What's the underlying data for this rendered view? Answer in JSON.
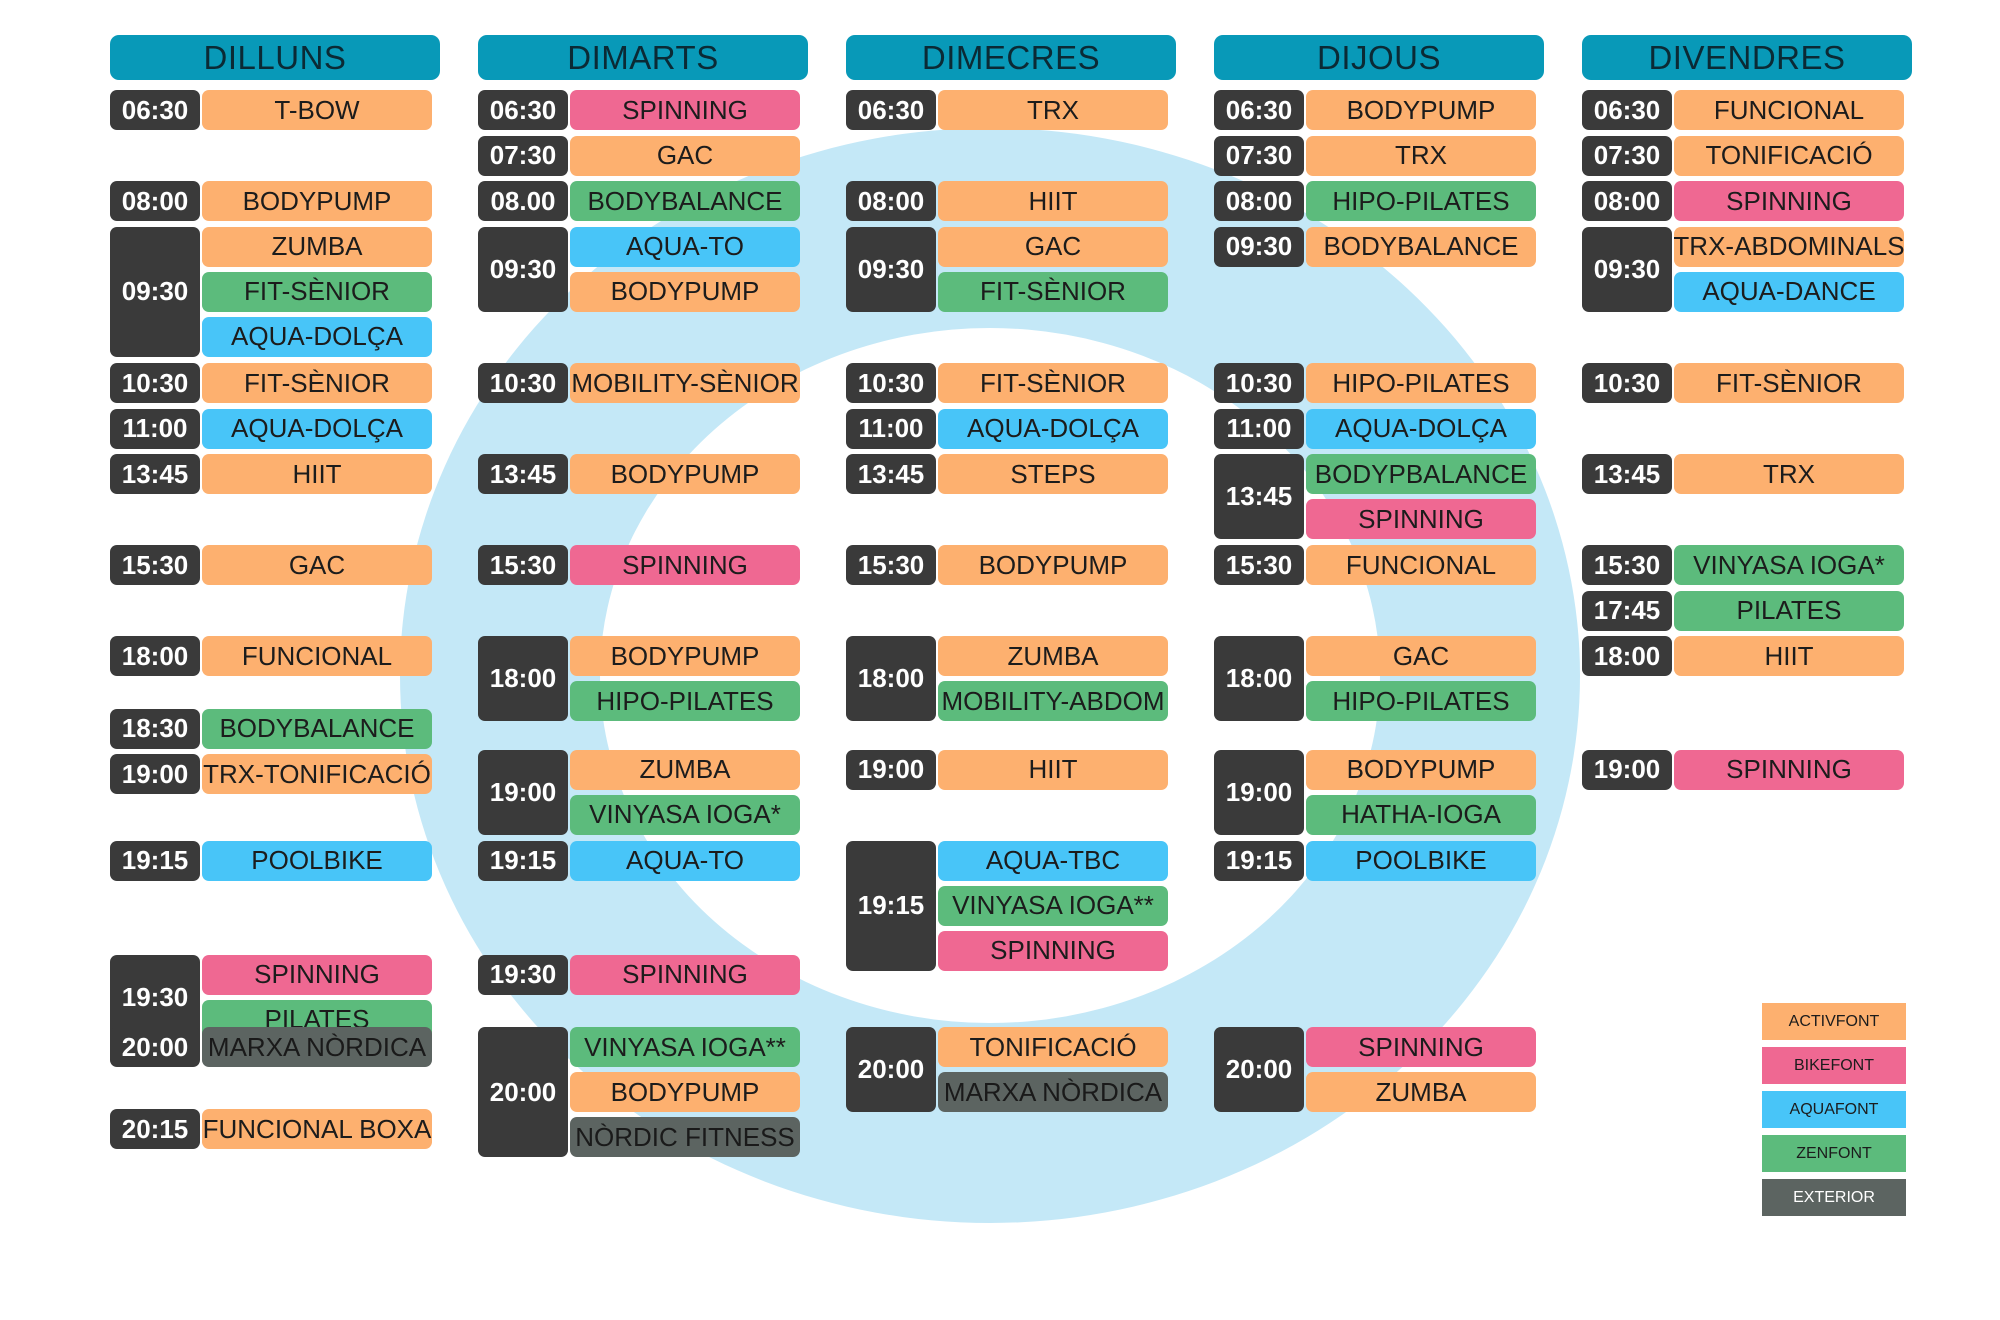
{
  "colors": {
    "ACTIVFONT": "#fdb06f",
    "BIKEFONT": "#ef6892",
    "AQUAFONT": "#48c5f8",
    "ZENFONT": "#5cbb7c",
    "EXTERIOR": "#5c6461",
    "time_bg": "#3a3a3a",
    "header_bg": "#0899b8",
    "ring": "#c4e8f7"
  },
  "days": [
    {
      "name": "DILLUNS",
      "slots": [
        {
          "time": "06:30",
          "classes": [
            {
              "name": "T-BOW",
              "cat": "ACTIVFONT"
            }
          ]
        },
        {
          "time": "08:00",
          "classes": [
            {
              "name": "BODYPUMP",
              "cat": "ACTIVFONT"
            }
          ]
        },
        {
          "time": "09:30",
          "classes": [
            {
              "name": "ZUMBA",
              "cat": "ACTIVFONT"
            },
            {
              "name": "FIT-SÈNIOR",
              "cat": "ZENFONT"
            },
            {
              "name": "AQUA-DOLÇA",
              "cat": "AQUAFONT"
            }
          ]
        },
        {
          "time": "10:30",
          "classes": [
            {
              "name": "FIT-SÈNIOR",
              "cat": "ACTIVFONT"
            }
          ]
        },
        {
          "time": "11:00",
          "classes": [
            {
              "name": "AQUA-DOLÇA",
              "cat": "AQUAFONT"
            }
          ]
        },
        {
          "time": "13:45",
          "classes": [
            {
              "name": "HIIT",
              "cat": "ACTIVFONT"
            }
          ]
        },
        {
          "time": "15:30",
          "classes": [
            {
              "name": "GAC",
              "cat": "ACTIVFONT"
            }
          ]
        },
        {
          "time": "18:00",
          "classes": [
            {
              "name": "FUNCIONAL",
              "cat": "ACTIVFONT"
            }
          ]
        },
        {
          "time": "18:30",
          "classes": [
            {
              "name": "BODYBALANCE",
              "cat": "ZENFONT"
            }
          ]
        },
        {
          "time": "19:00",
          "classes": [
            {
              "name": "TRX-TONIFICACIÓ",
              "cat": "ACTIVFONT"
            }
          ]
        },
        {
          "time": "19:15",
          "classes": [
            {
              "name": "POOLBIKE",
              "cat": "AQUAFONT"
            }
          ]
        },
        {
          "time": "19:30",
          "classes": [
            {
              "name": "SPINNING",
              "cat": "BIKEFONT"
            },
            {
              "name": "PILATES",
              "cat": "ZENFONT"
            }
          ]
        },
        {
          "time": "20:00",
          "classes": [
            {
              "name": "MARXA NÒRDICA",
              "cat": "EXTERIOR"
            }
          ]
        },
        {
          "time": "20:15",
          "classes": [
            {
              "name": "FUNCIONAL BOXA",
              "cat": "ACTIVFONT"
            }
          ]
        }
      ]
    },
    {
      "name": "DIMARTS",
      "slots": [
        {
          "time": "06:30",
          "classes": [
            {
              "name": "SPINNING",
              "cat": "BIKEFONT"
            }
          ]
        },
        {
          "time": "07:30",
          "classes": [
            {
              "name": "GAC",
              "cat": "ACTIVFONT"
            }
          ]
        },
        {
          "time": "08.00",
          "classes": [
            {
              "name": "BODYBALANCE",
              "cat": "ZENFONT"
            }
          ]
        },
        {
          "time": "09:30",
          "classes": [
            {
              "name": "AQUA-TO",
              "cat": "AQUAFONT"
            },
            {
              "name": "BODYPUMP",
              "cat": "ACTIVFONT"
            }
          ]
        },
        {
          "time": "10:30",
          "classes": [
            {
              "name": "MOBILITY-SÈNIOR",
              "cat": "ACTIVFONT"
            }
          ]
        },
        {
          "time": "13:45",
          "classes": [
            {
              "name": "BODYPUMP",
              "cat": "ACTIVFONT"
            }
          ]
        },
        {
          "time": "15:30",
          "classes": [
            {
              "name": "SPINNING",
              "cat": "BIKEFONT"
            }
          ]
        },
        {
          "time": "18:00",
          "classes": [
            {
              "name": "BODYPUMP",
              "cat": "ACTIVFONT"
            },
            {
              "name": "HIPO-PILATES",
              "cat": "ZENFONT"
            }
          ]
        },
        {
          "time": "19:00",
          "classes": [
            {
              "name": "ZUMBA",
              "cat": "ACTIVFONT"
            },
            {
              "name": "VINYASA IOGA*",
              "cat": "ZENFONT"
            }
          ]
        },
        {
          "time": "19:15",
          "classes": [
            {
              "name": "AQUA-TO",
              "cat": "AQUAFONT"
            }
          ]
        },
        {
          "time": "19:30",
          "classes": [
            {
              "name": "SPINNING",
              "cat": "BIKEFONT"
            }
          ]
        },
        {
          "time": "20:00",
          "classes": [
            {
              "name": "VINYASA IOGA**",
              "cat": "ZENFONT"
            },
            {
              "name": "BODYPUMP",
              "cat": "ACTIVFONT"
            },
            {
              "name": "NÒRDIC FITNESS",
              "cat": "EXTERIOR"
            }
          ]
        }
      ]
    },
    {
      "name": "DIMECRES",
      "slots": [
        {
          "time": "06:30",
          "classes": [
            {
              "name": "TRX",
              "cat": "ACTIVFONT"
            }
          ]
        },
        {
          "time": "08:00",
          "classes": [
            {
              "name": "HIIT",
              "cat": "ACTIVFONT"
            }
          ]
        },
        {
          "time": "09:30",
          "classes": [
            {
              "name": "GAC",
              "cat": "ACTIVFONT"
            },
            {
              "name": "FIT-SÈNIOR",
              "cat": "ZENFONT"
            }
          ]
        },
        {
          "time": "10:30",
          "classes": [
            {
              "name": "FIT-SÈNIOR",
              "cat": "ACTIVFONT"
            }
          ]
        },
        {
          "time": "11:00",
          "classes": [
            {
              "name": "AQUA-DOLÇA",
              "cat": "AQUAFONT"
            }
          ]
        },
        {
          "time": "13:45",
          "classes": [
            {
              "name": "STEPS",
              "cat": "ACTIVFONT"
            }
          ]
        },
        {
          "time": "15:30",
          "classes": [
            {
              "name": "BODYPUMP",
              "cat": "ACTIVFONT"
            }
          ]
        },
        {
          "time": "18:00",
          "classes": [
            {
              "name": "ZUMBA",
              "cat": "ACTIVFONT"
            },
            {
              "name": "MOBILITY-ABDOM",
              "cat": "ZENFONT"
            }
          ]
        },
        {
          "time": "19:00",
          "classes": [
            {
              "name": "HIIT",
              "cat": "ACTIVFONT"
            }
          ]
        },
        {
          "time": "19:15",
          "classes": [
            {
              "name": "AQUA-TBC",
              "cat": "AQUAFONT"
            },
            {
              "name": "VINYASA IOGA**",
              "cat": "ZENFONT"
            },
            {
              "name": "SPINNING",
              "cat": "BIKEFONT"
            }
          ]
        },
        {
          "time": "20:00",
          "classes": [
            {
              "name": "TONIFICACIÓ",
              "cat": "ACTIVFONT"
            },
            {
              "name": "MARXA NÒRDICA",
              "cat": "EXTERIOR"
            }
          ]
        }
      ]
    },
    {
      "name": "DIJOUS",
      "slots": [
        {
          "time": "06:30",
          "classes": [
            {
              "name": "BODYPUMP",
              "cat": "ACTIVFONT"
            }
          ]
        },
        {
          "time": "07:30",
          "classes": [
            {
              "name": "TRX",
              "cat": "ACTIVFONT"
            }
          ]
        },
        {
          "time": "08:00",
          "classes": [
            {
              "name": "HIPO-PILATES",
              "cat": "ZENFONT"
            }
          ]
        },
        {
          "time": "09:30",
          "classes": [
            {
              "name": "BODYBALANCE",
              "cat": "ACTIVFONT"
            }
          ]
        },
        {
          "time": "10:30",
          "classes": [
            {
              "name": "HIPO-PILATES",
              "cat": "ACTIVFONT"
            }
          ]
        },
        {
          "time": "11:00",
          "classes": [
            {
              "name": "AQUA-DOLÇA",
              "cat": "AQUAFONT"
            }
          ]
        },
        {
          "time": "13:45",
          "classes": [
            {
              "name": "BODYPBALANCE",
              "cat": "ZENFONT"
            },
            {
              "name": "SPINNING",
              "cat": "BIKEFONT"
            }
          ]
        },
        {
          "time": "15:30",
          "classes": [
            {
              "name": "FUNCIONAL",
              "cat": "ACTIVFONT"
            }
          ]
        },
        {
          "time": "18:00",
          "classes": [
            {
              "name": "GAC",
              "cat": "ACTIVFONT"
            },
            {
              "name": "HIPO-PILATES",
              "cat": "ZENFONT"
            }
          ]
        },
        {
          "time": "19:00",
          "classes": [
            {
              "name": "BODYPUMP",
              "cat": "ACTIVFONT"
            },
            {
              "name": "HATHA-IOGA",
              "cat": "ZENFONT"
            }
          ]
        },
        {
          "time": "19:15",
          "classes": [
            {
              "name": "POOLBIKE",
              "cat": "AQUAFONT"
            }
          ]
        },
        {
          "time": "20:00",
          "classes": [
            {
              "name": "SPINNING",
              "cat": "BIKEFONT"
            },
            {
              "name": "ZUMBA",
              "cat": "ACTIVFONT"
            }
          ]
        }
      ]
    },
    {
      "name": "DIVENDRES",
      "slots": [
        {
          "time": "06:30",
          "classes": [
            {
              "name": "FUNCIONAL",
              "cat": "ACTIVFONT"
            }
          ]
        },
        {
          "time": "07:30",
          "classes": [
            {
              "name": "TONIFICACIÓ",
              "cat": "ACTIVFONT"
            }
          ]
        },
        {
          "time": "08:00",
          "classes": [
            {
              "name": "SPINNING",
              "cat": "BIKEFONT"
            }
          ]
        },
        {
          "time": "09:30",
          "classes": [
            {
              "name": "TRX-ABDOMINALS",
              "cat": "ACTIVFONT"
            },
            {
              "name": "AQUA-DANCE",
              "cat": "AQUAFONT"
            }
          ]
        },
        {
          "time": "10:30",
          "classes": [
            {
              "name": "FIT-SÈNIOR",
              "cat": "ACTIVFONT"
            }
          ]
        },
        {
          "time": "13:45",
          "classes": [
            {
              "name": "TRX",
              "cat": "ACTIVFONT"
            }
          ]
        },
        {
          "time": "15:30",
          "classes": [
            {
              "name": "VINYASA IOGA*",
              "cat": "ZENFONT"
            }
          ]
        },
        {
          "time": "17:45",
          "classes": [
            {
              "name": "PILATES",
              "cat": "ZENFONT"
            }
          ]
        },
        {
          "time": "18:00",
          "classes": [
            {
              "name": "HIIT",
              "cat": "ACTIVFONT"
            }
          ]
        },
        {
          "time": "19:00",
          "classes": [
            {
              "name": "SPINNING",
              "cat": "BIKEFONT"
            }
          ]
        }
      ]
    }
  ],
  "legend": [
    {
      "label": "ACTIVFONT",
      "cat": "ACTIVFONT"
    },
    {
      "label": "BIKEFONT",
      "cat": "BIKEFONT"
    },
    {
      "label": "AQUAFONT",
      "cat": "AQUAFONT"
    },
    {
      "label": "ZENFONT",
      "cat": "ZENFONT"
    },
    {
      "label": "EXTERIOR",
      "cat": "EXTERIOR"
    }
  ]
}
